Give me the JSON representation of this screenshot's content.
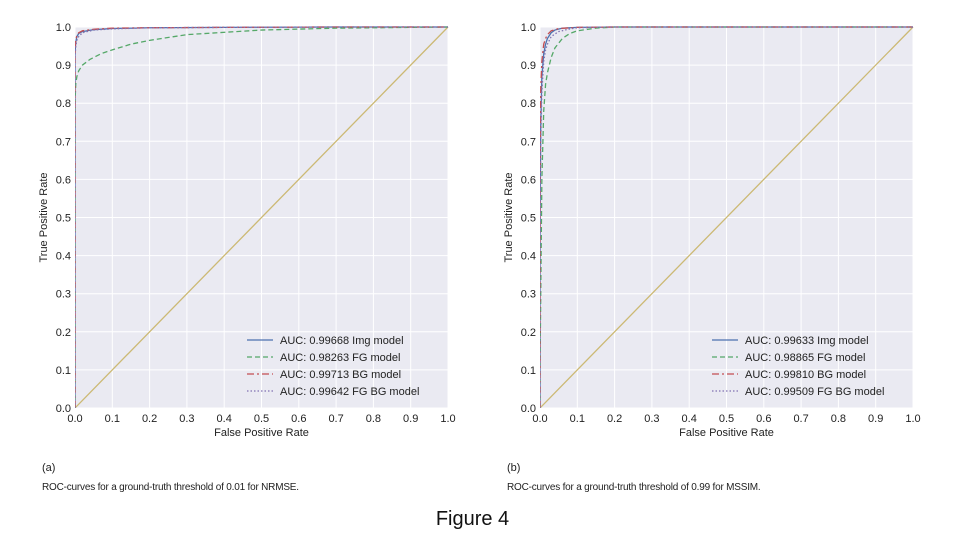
{
  "figure_title": "Figure 4",
  "captions": [
    {
      "label": "(a)",
      "text": "ROC-curves for a ground-truth threshold of 0.01 for NRMSE."
    },
    {
      "label": "(b)",
      "text": "ROC-curves for a ground-truth threshold of 0.99 for MSSIM."
    }
  ],
  "colors": {
    "background": "#eaeaf2",
    "grid": "#ffffff",
    "img": "#4c72b0",
    "fg": "#55a868",
    "bg": "#c44e52",
    "fgbg": "#8172b2",
    "diagonal": "#ccb974"
  },
  "chart_data": [
    {
      "type": "line",
      "title": "",
      "xlabel": "False Positive Rate",
      "ylabel": "True Positive Rate",
      "xlim": [
        0,
        1
      ],
      "ylim": [
        0,
        1
      ],
      "xticks": [
        "0.0",
        "0.1",
        "0.2",
        "0.3",
        "0.4",
        "0.5",
        "0.6",
        "0.7",
        "0.8",
        "0.9",
        "1.0"
      ],
      "yticks": [
        "0.0",
        "0.1",
        "0.2",
        "0.3",
        "0.4",
        "0.5",
        "0.6",
        "0.7",
        "0.8",
        "0.9",
        "1.0"
      ],
      "grid": true,
      "legend_position": "bottom-right",
      "series": [
        {
          "name": "AUC: 0.99668 Img model",
          "key": "img",
          "style": "solid",
          "x": [
            0,
            0,
            0.002,
            0.005,
            0.01,
            0.02,
            0.05,
            0.1,
            0.2,
            0.4,
            0.7,
            1.0
          ],
          "y": [
            0,
            0.93,
            0.96,
            0.975,
            0.983,
            0.988,
            0.993,
            0.996,
            0.998,
            0.999,
            1.0,
            1.0
          ]
        },
        {
          "name": "AUC: 0.98263 FG model",
          "key": "fg",
          "style": "dashed",
          "x": [
            0,
            0,
            0.002,
            0.005,
            0.01,
            0.02,
            0.04,
            0.07,
            0.1,
            0.15,
            0.2,
            0.3,
            0.5,
            0.7,
            1.0
          ],
          "y": [
            0,
            0.8,
            0.85,
            0.87,
            0.885,
            0.9,
            0.915,
            0.93,
            0.94,
            0.955,
            0.965,
            0.98,
            0.992,
            0.997,
            1.0
          ]
        },
        {
          "name": "AUC: 0.99713 BG model",
          "key": "bg",
          "style": "dashdot",
          "x": [
            0,
            0,
            0.002,
            0.005,
            0.01,
            0.02,
            0.05,
            0.1,
            0.2,
            0.4,
            0.7,
            1.0
          ],
          "y": [
            0,
            0.94,
            0.965,
            0.978,
            0.985,
            0.99,
            0.994,
            0.997,
            0.998,
            0.999,
            1.0,
            1.0
          ]
        },
        {
          "name": "AUC: 0.99642 FG BG model",
          "key": "fgbg",
          "style": "dotted",
          "x": [
            0,
            0,
            0.002,
            0.005,
            0.01,
            0.02,
            0.05,
            0.1,
            0.2,
            0.4,
            0.7,
            1.0
          ],
          "y": [
            0,
            0.92,
            0.95,
            0.965,
            0.975,
            0.985,
            0.992,
            0.995,
            0.998,
            0.999,
            1.0,
            1.0
          ]
        },
        {
          "name": "",
          "key": "diagonal",
          "style": "solid",
          "x": [
            0,
            1
          ],
          "y": [
            0,
            1
          ]
        }
      ]
    },
    {
      "type": "line",
      "title": "",
      "xlabel": "False Positive Rate",
      "ylabel": "True Positive Rate",
      "xlim": [
        0,
        1
      ],
      "ylim": [
        0,
        1
      ],
      "xticks": [
        "0.0",
        "0.1",
        "0.2",
        "0.3",
        "0.4",
        "0.5",
        "0.6",
        "0.7",
        "0.8",
        "0.9",
        "1.0"
      ],
      "yticks": [
        "0.0",
        "0.1",
        "0.2",
        "0.3",
        "0.4",
        "0.5",
        "0.6",
        "0.7",
        "0.8",
        "0.9",
        "1.0"
      ],
      "grid": true,
      "legend_position": "bottom-right",
      "series": [
        {
          "name": "AUC: 0.99633 Img model",
          "key": "img",
          "style": "solid",
          "x": [
            0,
            0,
            0.002,
            0.005,
            0.01,
            0.015,
            0.02,
            0.03,
            0.04,
            0.06,
            0.1,
            0.2,
            1.0
          ],
          "y": [
            0,
            0.5,
            0.75,
            0.87,
            0.93,
            0.955,
            0.97,
            0.985,
            0.992,
            0.997,
            0.999,
            1.0,
            1.0
          ]
        },
        {
          "name": "AUC: 0.98865 FG model",
          "key": "fg",
          "style": "dashed",
          "x": [
            0,
            0,
            0.002,
            0.005,
            0.01,
            0.015,
            0.02,
            0.03,
            0.04,
            0.06,
            0.08,
            0.1,
            0.15,
            0.2,
            1.0
          ],
          "y": [
            0,
            0.1,
            0.3,
            0.6,
            0.78,
            0.85,
            0.88,
            0.92,
            0.945,
            0.97,
            0.983,
            0.99,
            0.997,
            1.0,
            1.0
          ]
        },
        {
          "name": "AUC: 0.99810 BG model",
          "key": "bg",
          "style": "dashdot",
          "x": [
            0,
            0,
            0.002,
            0.005,
            0.01,
            0.015,
            0.02,
            0.03,
            0.05,
            0.1,
            0.2,
            1.0
          ],
          "y": [
            0,
            0.6,
            0.84,
            0.91,
            0.955,
            0.97,
            0.98,
            0.99,
            0.996,
            0.999,
            1.0,
            1.0
          ]
        },
        {
          "name": "AUC: 0.99509 FG BG model",
          "key": "fgbg",
          "style": "dotted",
          "x": [
            0,
            0,
            0.002,
            0.005,
            0.01,
            0.015,
            0.02,
            0.03,
            0.05,
            0.08,
            0.1,
            0.2,
            1.0
          ],
          "y": [
            0,
            0.4,
            0.7,
            0.83,
            0.91,
            0.94,
            0.955,
            0.975,
            0.988,
            0.995,
            0.998,
            1.0,
            1.0
          ]
        },
        {
          "name": "",
          "key": "diagonal",
          "style": "solid",
          "x": [
            0,
            1
          ],
          "y": [
            0,
            1
          ]
        }
      ]
    }
  ]
}
